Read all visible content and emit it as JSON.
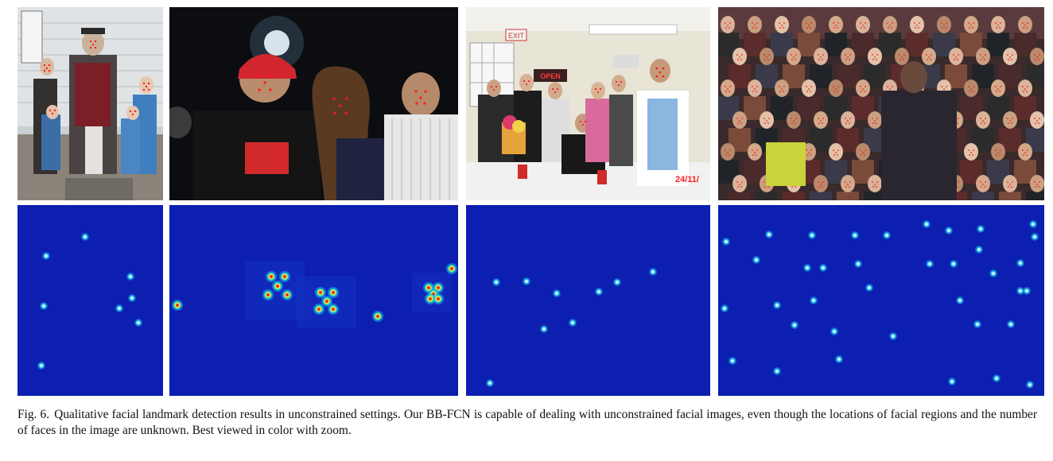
{
  "figure": {
    "label": "Fig. 6.",
    "caption": "Qualitative facial landmark detection results in unconstrained settings. Our BB-FCN is capable of dealing with unconstrained facial images, even though the locations of facial regions and the number of faces in the image are unknown. Best viewed in color with zoom."
  },
  "photos": [
    {
      "scene": "statue-with-children",
      "text": []
    },
    {
      "scene": "night-couple-portrait",
      "text": []
    },
    {
      "scene": "indoor-party",
      "text": [
        "EXIT",
        "OPEN",
        "24/11/"
      ]
    },
    {
      "scene": "crowd-audience",
      "text": []
    }
  ],
  "colors": {
    "heatmap_bg": "#0c1fb0",
    "landmark_marker": "#ff1a1a"
  }
}
